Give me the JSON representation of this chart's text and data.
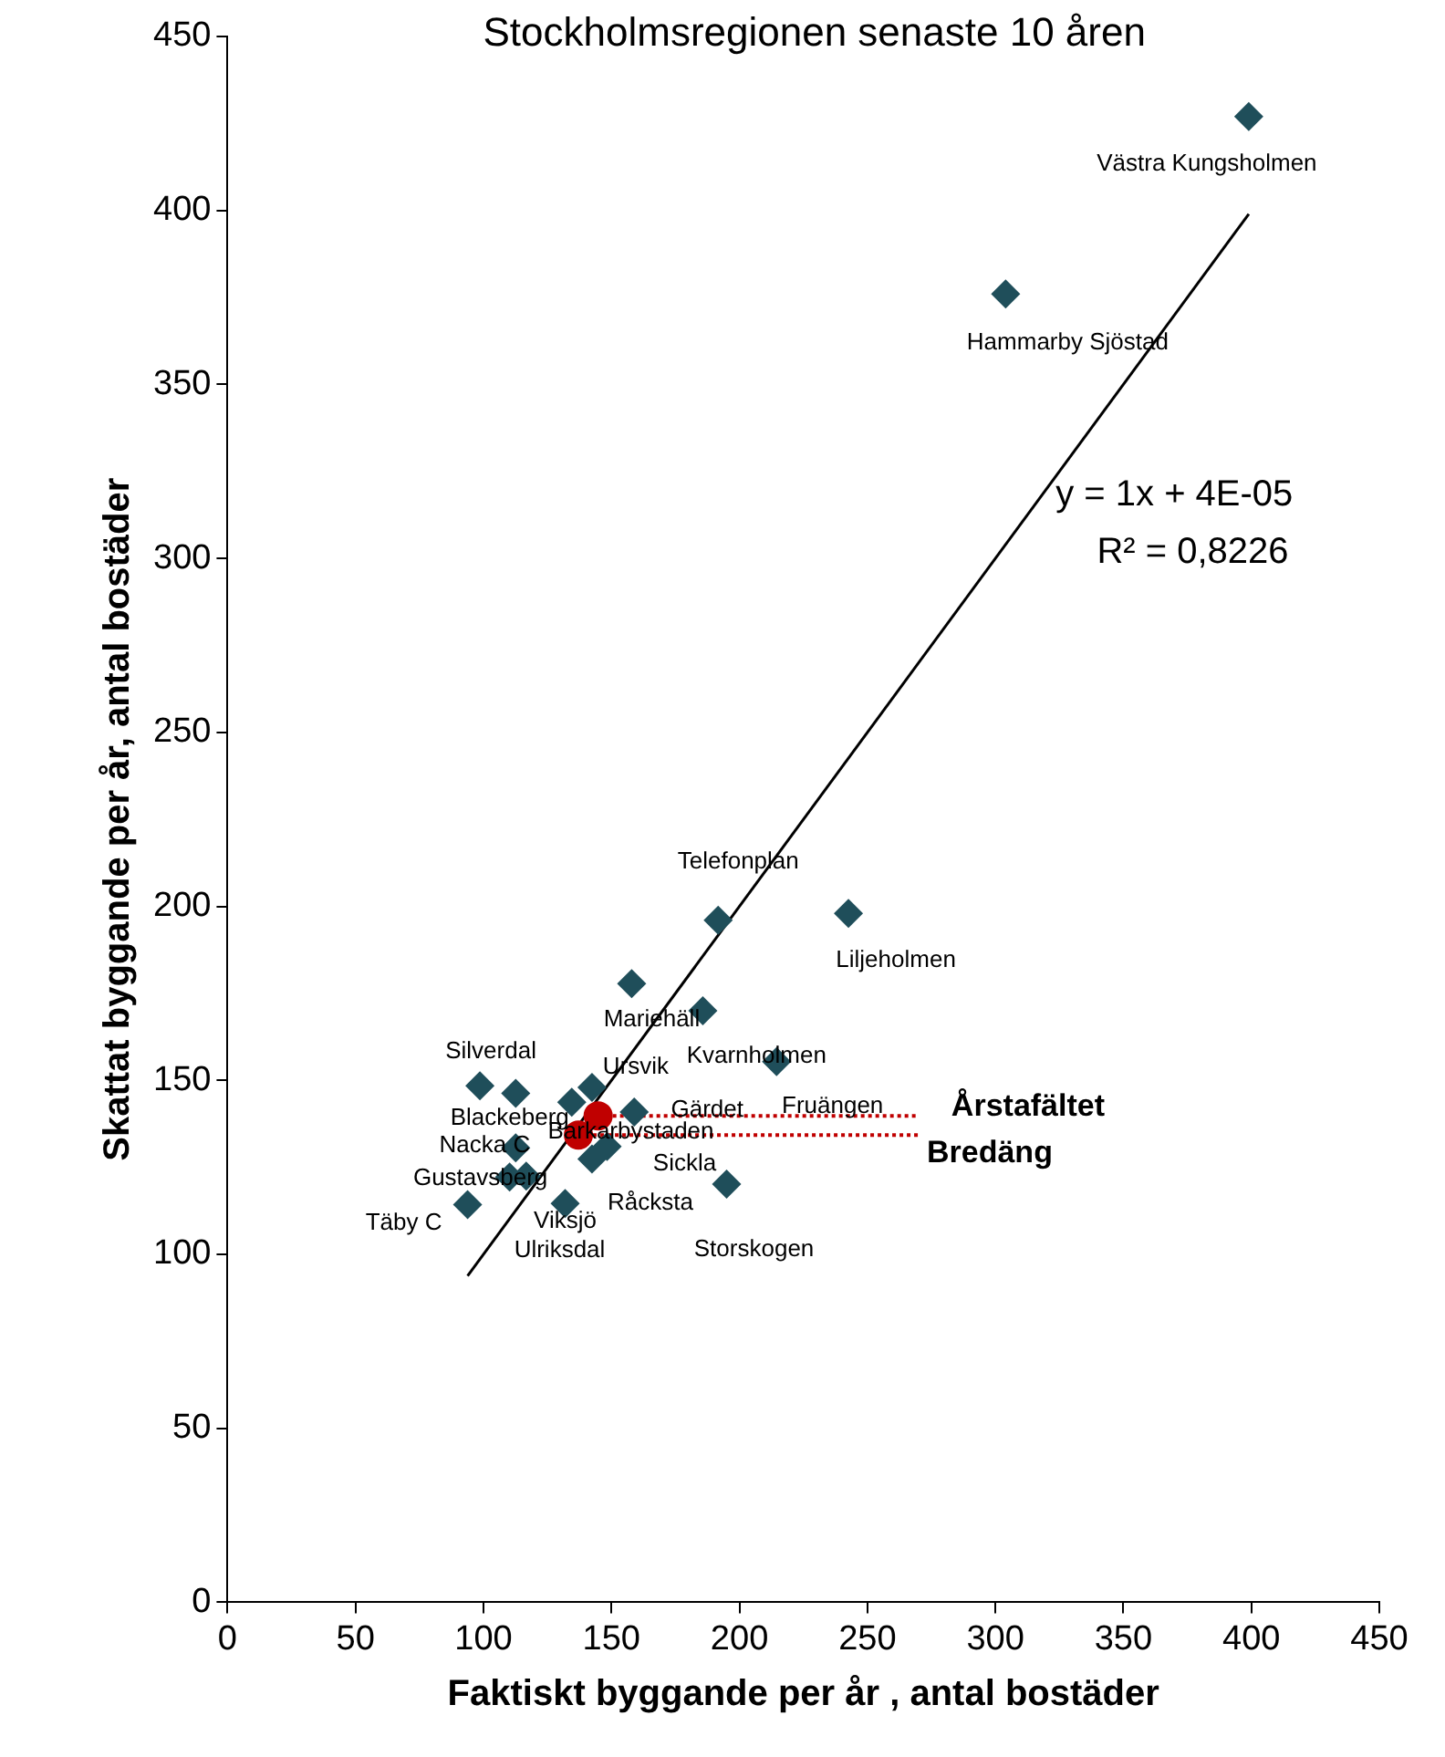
{
  "chart_data": {
    "type": "scatter",
    "title": "Stockholmsregionen senaste 10 åren",
    "xlabel": "Faktiskt byggande per år , antal bostäder",
    "ylabel": "Skattat byggande per år, antal bostäder",
    "xlim": [
      0,
      450
    ],
    "ylim": [
      0,
      450
    ],
    "xticks": [
      0,
      50,
      100,
      150,
      200,
      250,
      300,
      350,
      400,
      450
    ],
    "yticks": [
      0,
      50,
      100,
      150,
      200,
      250,
      300,
      350,
      400,
      450
    ],
    "grid": false,
    "legend": false,
    "series": [
      {
        "color": "#1f4e5a",
        "marker": "diamond",
        "x": [
          399,
          304,
          191.7,
          242.6,
          157.9,
          185.7,
          214.5,
          98.6,
          112.6,
          142.4,
          134.5,
          158.9,
          148.3,
          142.4,
          112.6,
          110.2,
          116.7,
          93.8,
          131.9,
          195
        ],
        "values": [
          427,
          376,
          196,
          198,
          177.8,
          170,
          155.4,
          148.4,
          146.3,
          148,
          143.7,
          140.9,
          131,
          127.4,
          130.6,
          122.2,
          122.5,
          114.3,
          114.6,
          120.2
        ]
      },
      {
        "type": "line",
        "color": "#c00000",
        "line_style": "dotted",
        "marker": "none",
        "x": [
          144.8,
          270
        ],
        "values": [
          139.8,
          139.8
        ]
      },
      {
        "type": "line",
        "color": "#c00000",
        "line_style": "dotted",
        "marker": "none",
        "x": [
          137.1,
          270
        ],
        "values": [
          134.3,
          134.3
        ]
      },
      {
        "color": "#c00000",
        "marker": "circle",
        "x": [
          144.8,
          137.1
        ],
        "values": [
          139.8,
          134.3
        ]
      },
      {
        "type": "line",
        "color": "#000000",
        "line_style": "solid",
        "marker": "none",
        "x": [
          93.8,
          399
        ],
        "values": [
          93.8,
          399
        ]
      }
    ],
    "annotations": [
      {
        "text": "Västra Kungsholmen",
        "x": 399,
        "y": 427
      },
      {
        "text": "Hammarby Sjöstad",
        "x": 304,
        "y": 376
      },
      {
        "text": "Telefonplan",
        "x": 191.7,
        "y": 196
      },
      {
        "text": "Liljeholmen",
        "x": 242.6,
        "y": 198
      },
      {
        "text": "Mariehäll",
        "x": 185.7,
        "y": 170
      },
      {
        "text": "Silverdal",
        "x": 98.6,
        "y": 148.4
      },
      {
        "text": "Ursvik",
        "x": 142.4,
        "y": 148
      },
      {
        "text": "Kvarnholmen",
        "x": 214.5,
        "y": 155.4
      },
      {
        "text": "Gärdet",
        "x": 158.9,
        "y": 140.9
      },
      {
        "text": "Fruängen",
        "x": 236.4,
        "y": 139.8
      },
      {
        "text": "Årstafältet",
        "x": 270,
        "y": 139.8
      },
      {
        "text": "Bredäng",
        "x": 270,
        "y": 134.3
      },
      {
        "text": "Blackeberg",
        "x": 134.5,
        "y": 143.7
      },
      {
        "text": "Barkarbystaden",
        "x": 148.3,
        "y": 131
      },
      {
        "text": "Nacka C",
        "x": 112.6,
        "y": 130.6
      },
      {
        "text": "Gustavsberg",
        "x": 110.2,
        "y": 122.2
      },
      {
        "text": "Täby C",
        "x": 93.8,
        "y": 114.3
      },
      {
        "text": "Viksjö",
        "x": 131.9,
        "y": 114.6
      },
      {
        "text": "Sickla",
        "x": 195,
        "y": 120.2
      },
      {
        "text": "Råcksta",
        "x": 142.4,
        "y": 127.4
      },
      {
        "text": "Ulriksdal",
        "x": 131.9,
        "y": 114.6
      },
      {
        "text": "Storskogen",
        "x": 195,
        "y": 120.2
      },
      "y = 1x + 4E-05",
      "R² = 0,8226"
    ]
  }
}
